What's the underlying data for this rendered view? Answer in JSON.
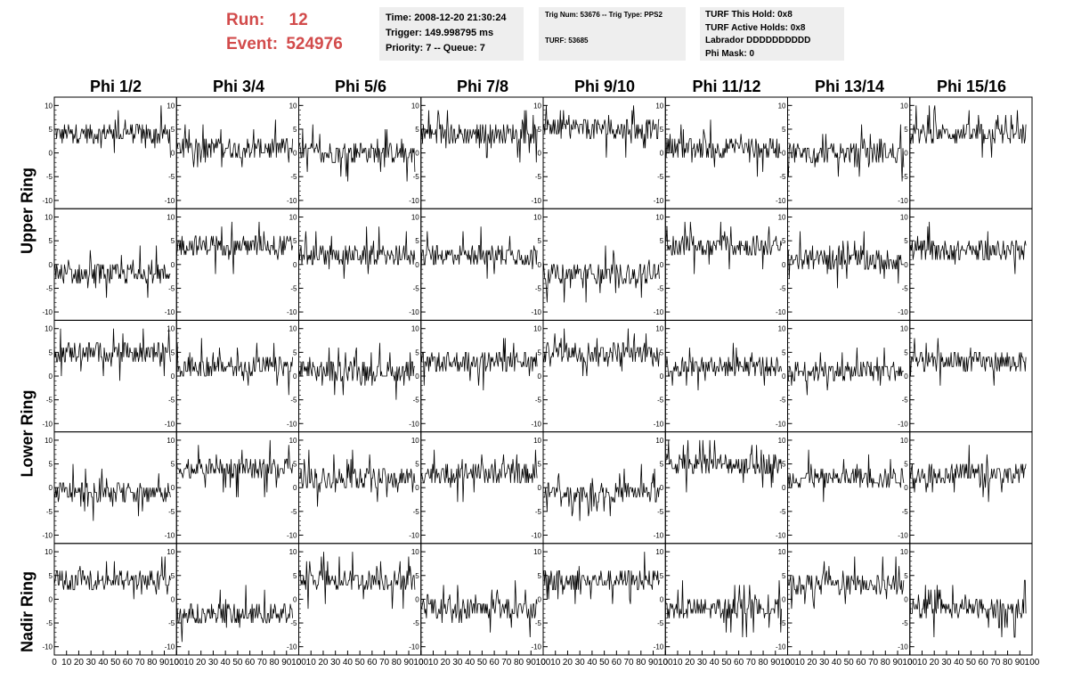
{
  "header": {
    "run_label": "Run:",
    "run_value": "12",
    "event_label": "Event:",
    "event_value": "524976",
    "run_color": "#d24b4b"
  },
  "time_box": {
    "time": "Time: 2008-12-20 21:30:24",
    "trigger": "Trigger: 149.998795 ms",
    "priority": "Priority: 7 -- Queue: 7"
  },
  "trig_box": {
    "trig": "Trig Num: 53676 -- Trig Type: PPS2",
    "turf": "TURF: 53685"
  },
  "turf_box": {
    "this_hold": "TURF This Hold: 0x8",
    "active_holds": "TURF Active Holds: 0x8",
    "labrador": "Labrador DDDDDDDDDD",
    "phi_mask": "Phi Mask: 0"
  },
  "phi_headers": [
    "Phi 1/2",
    "Phi 3/4",
    "Phi 5/6",
    "Phi 7/8",
    "Phi 9/10",
    "Phi 11/12",
    "Phi 13/14",
    "Phi 15/16"
  ],
  "ring_labels": [
    "Upper Ring",
    "Lower Ring",
    "Nadir Ring"
  ],
  "chart_data": {
    "type": "line",
    "grid": false,
    "x_range": [
      0,
      100
    ],
    "y_range": [
      -11,
      11
    ],
    "x_tick_labels": [
      "0",
      "10",
      "20",
      "30",
      "40",
      "50",
      "60",
      "70",
      "80",
      "90",
      "100"
    ],
    "y_tick_labels": [
      "10",
      "5",
      "0",
      "-5",
      "-10"
    ],
    "panel_x_extent": [
      0,
      95
    ],
    "panel_baselines": [
      [
        4,
        1,
        0,
        4,
        5,
        1,
        0,
        4
      ],
      [
        -2,
        4,
        2,
        2,
        -2,
        4,
        1,
        3
      ],
      [
        5,
        2,
        1,
        3,
        5,
        2,
        1,
        3
      ],
      [
        -1,
        4,
        2,
        3,
        -1,
        5,
        2,
        3
      ],
      [
        4,
        -3,
        4,
        -2,
        4,
        -2,
        3,
        -2
      ]
    ]
  }
}
